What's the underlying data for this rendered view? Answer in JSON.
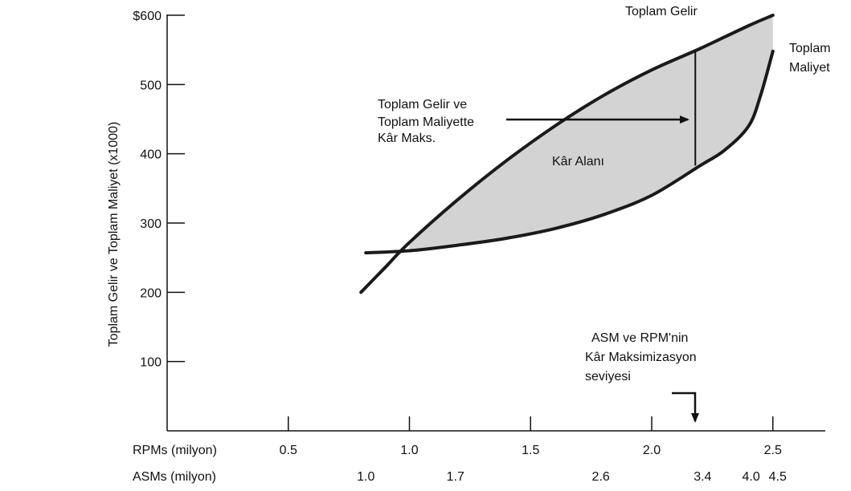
{
  "chart_data": {
    "type": "line",
    "ylabel": "Toplam Gelir ve Toplam Maliyet (x1000)",
    "ylim": [
      0,
      600
    ],
    "xlim": [
      0.0,
      2.72
    ],
    "y_ticks": [
      {
        "value": 100,
        "label": "100"
      },
      {
        "value": 200,
        "label": "200"
      },
      {
        "value": 300,
        "label": "300"
      },
      {
        "value": 400,
        "label": "400"
      },
      {
        "value": 500,
        "label": "500"
      },
      {
        "value": 600,
        "label": "$600"
      }
    ],
    "rpm_axis": {
      "label": "RPMs (milyon)",
      "ticks": [
        {
          "value": 0.5,
          "label": "0.5"
        },
        {
          "value": 1.0,
          "label": "1.0"
        },
        {
          "value": 1.5,
          "label": "1.5"
        },
        {
          "value": 2.0,
          "label": "2.0"
        },
        {
          "value": 2.5,
          "label": "2.5"
        }
      ]
    },
    "asm_axis": {
      "label": "ASMs (milyon)",
      "ticks": [
        {
          "at_rpm": 0.82,
          "label": "1.0"
        },
        {
          "at_rpm": 1.19,
          "label": "1.7"
        },
        {
          "at_rpm": 1.79,
          "label": "2.6"
        },
        {
          "at_rpm": 2.21,
          "label": "3.4"
        },
        {
          "at_rpm": 2.41,
          "label": "4.0"
        },
        {
          "at_rpm": 2.52,
          "label": "4.5"
        }
      ]
    },
    "series": [
      {
        "name": "Toplam Gelir",
        "x": [
          0.8,
          0.9,
          1.0,
          1.2,
          1.4,
          1.6,
          1.8,
          2.0,
          2.2,
          2.4,
          2.5
        ],
        "y": [
          200,
          236,
          272,
          334,
          390,
          440,
          484,
          521,
          552,
          585,
          600
        ]
      },
      {
        "name": "Toplam Maliyet",
        "x": [
          0.82,
          1.0,
          1.2,
          1.4,
          1.6,
          1.8,
          2.0,
          2.2,
          2.3,
          2.4,
          2.45,
          2.5
        ],
        "y": [
          257,
          260,
          268,
          278,
          292,
          312,
          340,
          383,
          405,
          440,
          485,
          548
        ]
      }
    ],
    "profit_line": {
      "x": 2.18,
      "y_top": 548,
      "y_bottom": 383
    },
    "fill_color": "#d3d3d3",
    "line_color": "#1a1a1a"
  },
  "annotations": {
    "revenue_label": "Toplam Gelir",
    "cost_label_line1": "Toplam",
    "cost_label_line2": "Maliyet",
    "profit_max_line1": "Toplam Gelir ve",
    "profit_max_line2": "Toplam Maliyette",
    "profit_max_line3": "Kâr Maks.",
    "profit_area": "Kâr Alanı",
    "level_line1": "ASM ve RPM'nin",
    "level_line2": "Kâr Maksimizasyon",
    "level_line3": "seviyesi"
  }
}
